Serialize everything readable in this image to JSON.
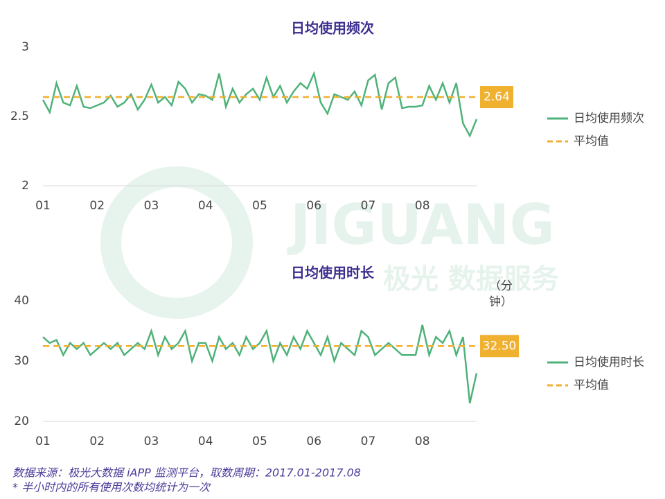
{
  "chart_data": [
    {
      "type": "line",
      "title": "日均使用频次",
      "categories": [
        "01",
        null,
        null,
        null,
        null,
        null,
        null,
        null,
        "02",
        null,
        null,
        null,
        null,
        null,
        null,
        null,
        "03",
        null,
        null,
        null,
        null,
        null,
        null,
        null,
        "04",
        null,
        null,
        null,
        null,
        null,
        null,
        null,
        "05",
        null,
        null,
        null,
        null,
        null,
        null,
        null,
        "06",
        null,
        null,
        null,
        null,
        null,
        null,
        null,
        "07",
        null,
        null,
        null,
        null,
        null,
        null,
        null,
        "08",
        null,
        null,
        null,
        null,
        null,
        null,
        null,
        null
      ],
      "series": [
        {
          "name": "日均使用频次",
          "color": "#4fb27a",
          "values": [
            2.62,
            2.53,
            2.74,
            2.6,
            2.58,
            2.72,
            2.57,
            2.56,
            2.58,
            2.6,
            2.65,
            2.57,
            2.6,
            2.66,
            2.55,
            2.62,
            2.73,
            2.6,
            2.64,
            2.58,
            2.75,
            2.7,
            2.6,
            2.66,
            2.65,
            2.62,
            2.81,
            2.57,
            2.7,
            2.6,
            2.66,
            2.7,
            2.62,
            2.78,
            2.64,
            2.72,
            2.6,
            2.68,
            2.74,
            2.7,
            2.81,
            2.6,
            2.52,
            2.66,
            2.64,
            2.62,
            2.68,
            2.58,
            2.76,
            2.8,
            2.55,
            2.74,
            2.78,
            2.56,
            2.57,
            2.57,
            2.58,
            2.72,
            2.62,
            2.74,
            2.6,
            2.74,
            2.45,
            2.36,
            2.48
          ]
        }
      ],
      "average": {
        "name": "平均值",
        "color": "#f0b030",
        "value": 2.64
      },
      "ylim": [
        2,
        3
      ],
      "yticks": [
        2,
        2.5,
        3
      ]
    },
    {
      "type": "line",
      "title": "日均使用时长",
      "unit_label": "（分钟）",
      "categories": [
        "01",
        null,
        null,
        null,
        null,
        null,
        null,
        null,
        "02",
        null,
        null,
        null,
        null,
        null,
        null,
        null,
        "03",
        null,
        null,
        null,
        null,
        null,
        null,
        null,
        "04",
        null,
        null,
        null,
        null,
        null,
        null,
        null,
        "05",
        null,
        null,
        null,
        null,
        null,
        null,
        null,
        "06",
        null,
        null,
        null,
        null,
        null,
        null,
        null,
        "07",
        null,
        null,
        null,
        null,
        null,
        null,
        null,
        "08",
        null,
        null,
        null,
        null,
        null,
        null,
        null,
        null
      ],
      "series": [
        {
          "name": "日均使用时长",
          "color": "#4fb27a",
          "values": [
            34,
            33,
            33.5,
            31,
            33,
            32,
            33,
            31,
            32,
            33,
            32,
            33,
            31,
            32,
            33,
            32,
            35,
            31,
            34,
            32,
            33,
            35,
            30,
            33,
            33,
            30,
            34,
            32,
            33,
            31,
            34,
            32,
            33,
            35,
            30,
            33,
            31,
            34,
            32,
            35,
            33,
            31,
            34,
            30,
            33,
            32,
            31,
            35,
            34,
            31,
            32,
            33,
            32,
            31,
            31,
            31,
            36,
            31,
            34,
            33,
            35,
            31,
            34,
            23,
            28
          ]
        }
      ],
      "average": {
        "name": "平均值",
        "color": "#f0b030",
        "value": 32.5,
        "value_label": "32.50"
      },
      "ylim": [
        20,
        40
      ],
      "yticks": [
        20,
        30,
        40
      ]
    }
  ],
  "watermark": {
    "brand": "JIGUANG",
    "subtitle": "极光 数据服务"
  },
  "notes": [
    "数据来源：极光大数据 iAPP 监测平台，取数周期：2017.01-2017.08",
    "* 半小时内的所有使用次数均统计为一次"
  ]
}
